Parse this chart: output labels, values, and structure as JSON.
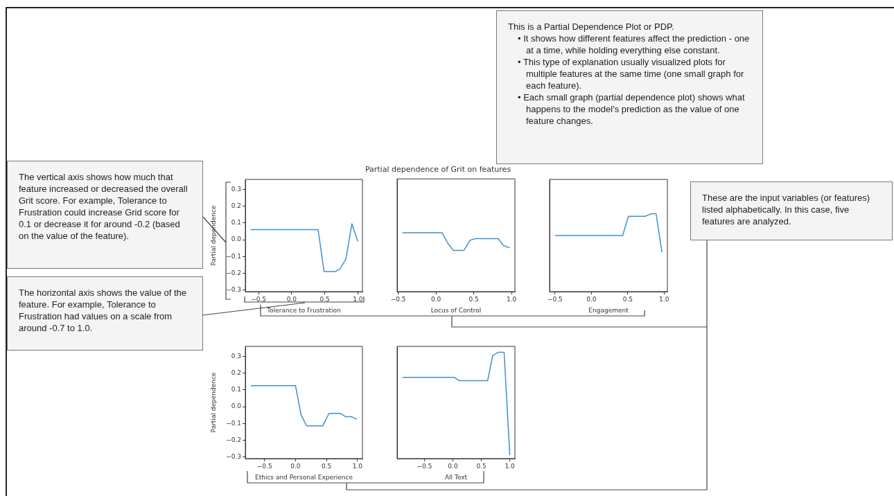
{
  "chart_data": [
    {
      "type": "line",
      "xlabel": "Tolerance to Frustration",
      "ylabel": "Partial dependence",
      "color": "#3f8fd2",
      "x": [
        -0.62,
        0.4,
        0.49,
        0.66,
        0.73,
        0.82,
        0.91,
        1.0
      ],
      "values": [
        0.06,
        0.06,
        -0.19,
        -0.19,
        -0.175,
        -0.115,
        0.095,
        -0.01
      ],
      "xlim": [
        -0.7,
        1.07
      ],
      "ylim": [
        -0.31,
        0.36
      ],
      "xticks": [
        {
          "value": -0.5,
          "label": "−0.5"
        },
        {
          "value": 0,
          "label": "0.0"
        },
        {
          "value": 0.5,
          "label": "0.5"
        },
        {
          "value": 1,
          "label": "1.0"
        }
      ],
      "yticks": [
        {
          "value": -0.3,
          "label": "−0.3"
        },
        {
          "value": -0.2,
          "label": "−0.2"
        },
        {
          "value": -0.1,
          "label": "−0.1"
        },
        {
          "value": 0,
          "label": "0.0"
        },
        {
          "value": 0.1,
          "label": "0.1"
        },
        {
          "value": 0.2,
          "label": "0.2"
        },
        {
          "value": 0.3,
          "label": "0.3"
        }
      ]
    },
    {
      "type": "line",
      "title": "Partial dependence of Grit on features",
      "xlabel": "Locus of Control",
      "color": "#3f8fd2",
      "tick_labels": "x",
      "x": [
        -0.445,
        0.08,
        0.16,
        0.23,
        0.37,
        0.45,
        0.52,
        0.825,
        0.89,
        0.975
      ],
      "values": [
        0.04,
        0.04,
        -0.025,
        -0.065,
        -0.065,
        -0.005,
        0.005,
        0.005,
        -0.035,
        -0.05
      ],
      "xlim": [
        -0.515,
        1.045
      ],
      "ylim": [
        -0.31,
        0.36
      ],
      "xticks": [
        {
          "value": -0.5,
          "label": "−0.5"
        },
        {
          "value": 0,
          "label": "0.0"
        },
        {
          "value": 0.5,
          "label": "0.5"
        },
        {
          "value": 1,
          "label": "1.0"
        }
      ],
      "yticks": [
        {
          "value": -0.3,
          "label": null
        },
        {
          "value": -0.2,
          "label": null
        },
        {
          "value": -0.1,
          "label": null
        },
        {
          "value": 0,
          "label": null
        },
        {
          "value": 0.1,
          "label": null
        },
        {
          "value": 0.2,
          "label": null
        },
        {
          "value": 0.3,
          "label": null
        }
      ]
    },
    {
      "type": "line",
      "xlabel": "Engagement",
      "color": "#3f8fd2",
      "tick_labels": "x",
      "x": [
        -0.5,
        0.43,
        0.51,
        0.74,
        0.82,
        0.89,
        0.97
      ],
      "values": [
        0.025,
        0.025,
        0.14,
        0.14,
        0.155,
        0.155,
        -0.075
      ],
      "xlim": [
        -0.575,
        1.045
      ],
      "ylim": [
        -0.31,
        0.36
      ],
      "xticks": [
        {
          "value": -0.5,
          "label": "−0.5"
        },
        {
          "value": 0,
          "label": "0.0"
        },
        {
          "value": 0.5,
          "label": "0.5"
        },
        {
          "value": 1,
          "label": "1.0"
        }
      ],
      "yticks": [
        {
          "value": -0.3,
          "label": null
        },
        {
          "value": -0.2,
          "label": null
        },
        {
          "value": -0.1,
          "label": null
        },
        {
          "value": 0,
          "label": null
        },
        {
          "value": 0.1,
          "label": null
        },
        {
          "value": 0.2,
          "label": null
        },
        {
          "value": 0.3,
          "label": null
        }
      ]
    },
    {
      "type": "line",
      "xlabel": "Ethics and Personal Experience",
      "ylabel": "Partial dependence",
      "color": "#3f8fd2",
      "x": [
        -0.72,
        0.0,
        0.09,
        0.18,
        0.44,
        0.54,
        0.72,
        0.81,
        0.9,
        0.99
      ],
      "values": [
        0.125,
        0.125,
        -0.05,
        -0.115,
        -0.115,
        -0.04,
        -0.04,
        -0.06,
        -0.06,
        -0.075
      ],
      "xlim": [
        -0.81,
        1.08
      ],
      "ylim": [
        -0.31,
        0.36
      ],
      "xticks": [
        {
          "value": -0.5,
          "label": "−0.5"
        },
        {
          "value": 0,
          "label": "0.0"
        },
        {
          "value": 0.5,
          "label": "0.5"
        },
        {
          "value": 1,
          "label": "1.0"
        }
      ],
      "yticks": [
        {
          "value": -0.3,
          "label": "−0.3"
        },
        {
          "value": -0.2,
          "label": "−0.2"
        },
        {
          "value": -0.1,
          "label": "−0.1"
        },
        {
          "value": 0,
          "label": "0.0"
        },
        {
          "value": 0.1,
          "label": "0.1"
        },
        {
          "value": 0.2,
          "label": "0.2"
        },
        {
          "value": 0.3,
          "label": "0.3"
        }
      ]
    },
    {
      "type": "line",
      "xlabel": "All Text",
      "color": "#3f8fd2",
      "tick_labels": "x",
      "x": [
        -0.885,
        0.02,
        0.115,
        0.61,
        0.7,
        0.8,
        0.9,
        1.0
      ],
      "values": [
        0.175,
        0.175,
        0.155,
        0.155,
        0.305,
        0.325,
        0.325,
        -0.29
      ],
      "xlim": [
        -0.98,
        1.09
      ],
      "ylim": [
        -0.31,
        0.36
      ],
      "xticks": [
        {
          "value": -0.5,
          "label": "−0.5"
        },
        {
          "value": 0,
          "label": "0.0"
        },
        {
          "value": 0.5,
          "label": "0.5"
        },
        {
          "value": 1,
          "label": "1.0"
        }
      ],
      "yticks": [
        {
          "value": -0.3,
          "label": null
        },
        {
          "value": -0.2,
          "label": null
        },
        {
          "value": -0.1,
          "label": null
        },
        {
          "value": 0,
          "label": null
        },
        {
          "value": 0.1,
          "label": null
        },
        {
          "value": 0.2,
          "label": null
        },
        {
          "value": 0.3,
          "label": null
        }
      ]
    },
    {
      "type": "other",
      "annotations": [
        "The vertical axis shows how much that feature increased or decreased the overall Grit score. For example, Tolerance to Frustration could increase Grid score for 0.1 or decrease it for around -0.2 (based on the value of the feature)."
      ]
    },
    {
      "type": "other",
      "annotations": [
        "The horizontal axis shows the value of the feature. For example, Tolerance to Frustration had values on a scale from  around -0.7 to 1.0."
      ]
    },
    {
      "type": "other",
      "annotations": [
        "This is a Partial Dependence Plot or PDP.",
        "• It shows how different features affect the prediction - one at a time, while holding everything else constant.",
        "• This type of explanation usually visualized plots for multiple features at the same time (one small graph for each feature).",
        "• Each small graph (partial dependence plot) shows what happens to the model’s prediction as the value of one feature changes."
      ]
    },
    {
      "type": "other",
      "annotations": [
        "These are the input variables (or features) listed alphabetically. In this case, five features are analyzed."
      ]
    }
  ]
}
